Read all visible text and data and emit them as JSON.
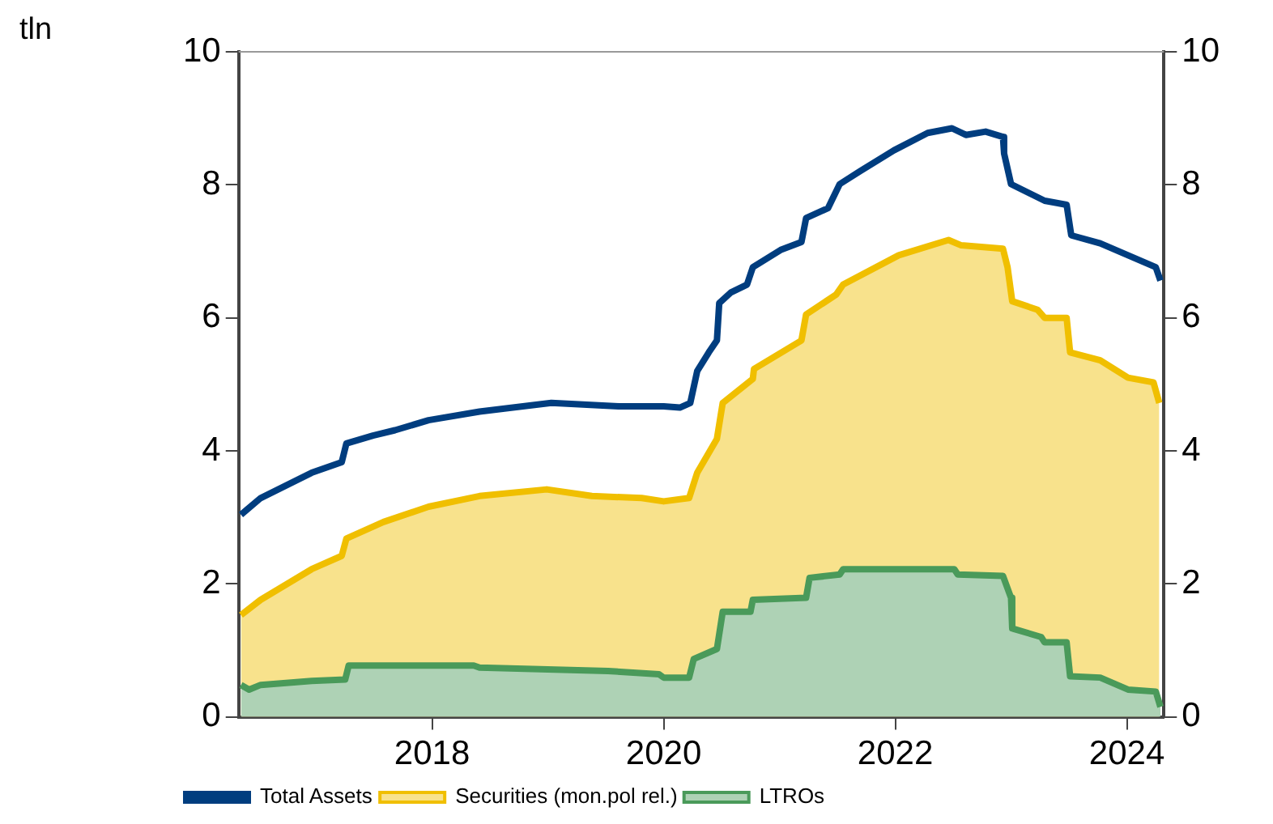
{
  "chart_data": {
    "type": "area",
    "ylabel": "tln",
    "xlim": [
      2016.33,
      2024.32
    ],
    "xticks": [
      2018,
      2020,
      2022,
      2024
    ],
    "ylim": [
      0,
      10
    ],
    "yticks": [
      0,
      2,
      4,
      6,
      8,
      10
    ],
    "y2lim": [
      0,
      10
    ],
    "y2ticks": [
      0,
      2,
      4,
      6,
      8,
      10
    ],
    "grid": false,
    "legend": "bottom",
    "marker": "none",
    "series": [
      {
        "name": "Total Assets",
        "type": "line",
        "color": "#003d7f",
        "x": [
          2016.35,
          2016.52,
          2016.96,
          2017.22,
          2017.26,
          2017.49,
          2017.68,
          2017.97,
          2018.41,
          2019.03,
          2019.61,
          2020.0,
          2020.14,
          2020.23,
          2020.29,
          2020.39,
          2020.46,
          2020.48,
          2020.58,
          2020.72,
          2020.77,
          2021.01,
          2021.19,
          2021.23,
          2021.42,
          2021.52,
          2021.7,
          2021.99,
          2022.28,
          2022.49,
          2022.61,
          2022.78,
          2022.93,
          2022.94,
          2023.0,
          2023.29,
          2023.48,
          2023.52,
          2023.77,
          2024.01,
          2024.25,
          2024.29
        ],
        "values": [
          3.04,
          3.29,
          3.67,
          3.83,
          4.11,
          4.23,
          4.31,
          4.46,
          4.59,
          4.72,
          4.67,
          4.67,
          4.65,
          4.72,
          5.2,
          5.48,
          5.66,
          6.22,
          6.38,
          6.5,
          6.76,
          7.02,
          7.14,
          7.5,
          7.65,
          8.01,
          8.21,
          8.52,
          8.78,
          8.85,
          8.75,
          8.8,
          8.72,
          8.47,
          8.01,
          7.76,
          7.7,
          7.24,
          7.12,
          6.94,
          6.76,
          6.56
        ]
      },
      {
        "name": "Securities (mon.pol rel.)",
        "color": "#f0bf00",
        "x": [
          2016.35,
          2016.52,
          2016.96,
          2017.22,
          2017.26,
          2017.58,
          2017.97,
          2018.41,
          2018.99,
          2019.38,
          2019.81,
          2020.0,
          2020.22,
          2020.29,
          2020.46,
          2020.51,
          2020.77,
          2020.78,
          2021.19,
          2021.23,
          2021.49,
          2021.55,
          2022.03,
          2022.46,
          2022.57,
          2022.93,
          2022.97,
          2023.01,
          2023.23,
          2023.29,
          2023.48,
          2023.51,
          2023.77,
          2024.01,
          2024.23,
          2024.28
        ],
        "values": [
          1.53,
          1.76,
          2.22,
          2.42,
          2.68,
          2.93,
          3.16,
          3.32,
          3.42,
          3.32,
          3.29,
          3.24,
          3.29,
          3.67,
          4.18,
          4.72,
          5.08,
          5.23,
          5.66,
          6.05,
          6.35,
          6.5,
          6.94,
          7.17,
          7.09,
          7.04,
          6.76,
          6.25,
          6.12,
          6.0,
          6.0,
          5.48,
          5.36,
          5.1,
          5.03,
          4.72
        ]
      },
      {
        "name": "LTROs",
        "color": "#4a9a5a",
        "x": [
          2016.35,
          2016.42,
          2016.52,
          2016.96,
          2017.25,
          2017.28,
          2018.36,
          2018.41,
          2019.52,
          2019.96,
          2020.0,
          2020.22,
          2020.26,
          2020.46,
          2020.51,
          2020.75,
          2020.77,
          2021.23,
          2021.26,
          2021.52,
          2021.55,
          2022.51,
          2022.54,
          2022.93,
          2023.0,
          2023.01,
          2023.26,
          2023.29,
          2023.48,
          2023.51,
          2023.77,
          2024.01,
          2024.25,
          2024.29
        ],
        "values": [
          0.48,
          0.41,
          0.48,
          0.54,
          0.56,
          0.77,
          0.77,
          0.74,
          0.69,
          0.64,
          0.59,
          0.59,
          0.87,
          1.02,
          1.58,
          1.58,
          1.76,
          1.79,
          2.09,
          2.14,
          2.22,
          2.22,
          2.14,
          2.12,
          1.79,
          1.33,
          1.2,
          1.12,
          1.12,
          0.61,
          0.59,
          0.41,
          0.38,
          0.15
        ]
      }
    ]
  }
}
